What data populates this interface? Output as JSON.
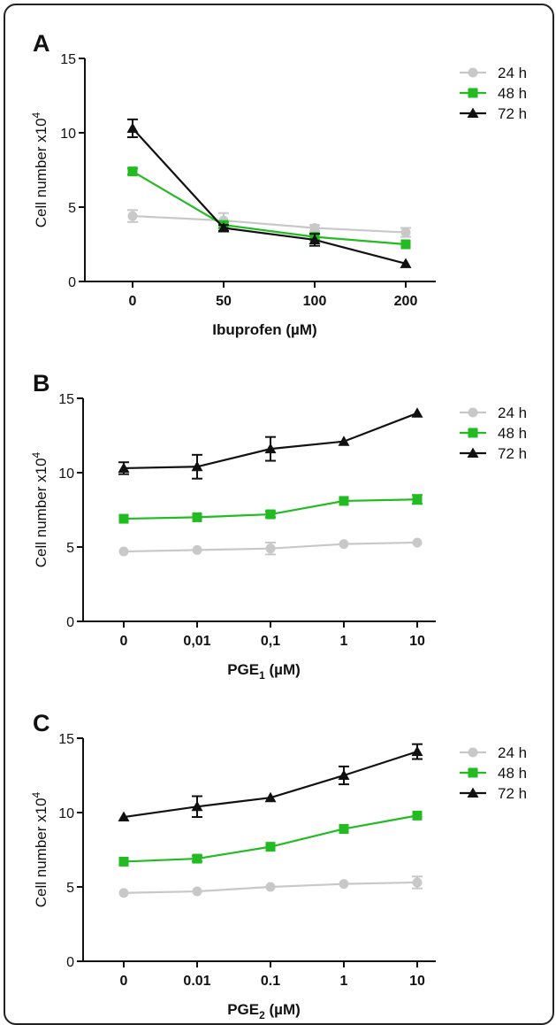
{
  "chart_data": [
    {
      "panel": "A",
      "type": "line",
      "categories": [
        "0",
        "50",
        "100",
        "200"
      ],
      "xlabel": "Ibuprofen (µM)",
      "xlabel_sub": "",
      "xlabel_tail": "",
      "ylabel": "Cell number x10",
      "ylabel_sup": "4",
      "ylim": [
        0,
        15
      ],
      "yticks": [
        0,
        5,
        10,
        15
      ],
      "series": [
        {
          "name": "24 h",
          "color": "#c8c8c8",
          "marker": "circle",
          "values": [
            4.4,
            4.1,
            3.6,
            3.3
          ],
          "errors": [
            0.4,
            0.5,
            0.2,
            0.3
          ]
        },
        {
          "name": "48 h",
          "color": "#22bb22",
          "marker": "square",
          "values": [
            7.4,
            3.8,
            3.0,
            2.5
          ],
          "errors": [
            0.2,
            0.2,
            0.2,
            0.1
          ]
        },
        {
          "name": "72 h",
          "color": "#111111",
          "marker": "triangle",
          "values": [
            10.3,
            3.6,
            2.8,
            1.2
          ],
          "errors": [
            0.6,
            0.2,
            0.4,
            0.1
          ]
        }
      ]
    },
    {
      "panel": "B",
      "type": "line",
      "categories": [
        "0",
        "0,01",
        "0,1",
        "1",
        "10"
      ],
      "xlabel": "PGE",
      "xlabel_sub": "1",
      "xlabel_tail": " (µM)",
      "ylabel": "Cell number x10",
      "ylabel_sup": "4",
      "ylim": [
        0,
        15
      ],
      "yticks": [
        0,
        5,
        10,
        15
      ],
      "series": [
        {
          "name": "24 h",
          "color": "#c8c8c8",
          "marker": "circle",
          "values": [
            4.7,
            4.8,
            4.9,
            5.2,
            5.3
          ],
          "errors": [
            0.1,
            0.1,
            0.4,
            0.1,
            0.1
          ]
        },
        {
          "name": "48 h",
          "color": "#22bb22",
          "marker": "square",
          "values": [
            6.9,
            7.0,
            7.2,
            8.1,
            8.2
          ],
          "errors": [
            0.1,
            0.1,
            0.2,
            0.1,
            0.3
          ]
        },
        {
          "name": "72 h",
          "color": "#111111",
          "marker": "triangle",
          "values": [
            10.3,
            10.4,
            11.6,
            12.1,
            14.0
          ],
          "errors": [
            0.4,
            0.8,
            0.8,
            0.1,
            0.1
          ]
        }
      ]
    },
    {
      "panel": "C",
      "type": "line",
      "categories": [
        "0",
        "0.01",
        "0.1",
        "1",
        "10"
      ],
      "xlabel": "PGE",
      "xlabel_sub": "2",
      "xlabel_tail": " (µM)",
      "ylabel": "Cell number x10",
      "ylabel_sup": "4",
      "ylim": [
        0,
        15
      ],
      "yticks": [
        0,
        5,
        10,
        15
      ],
      "series": [
        {
          "name": "24 h",
          "color": "#c8c8c8",
          "marker": "circle",
          "values": [
            4.6,
            4.7,
            5.0,
            5.2,
            5.3
          ],
          "errors": [
            0.1,
            0.1,
            0.1,
            0.1,
            0.4
          ]
        },
        {
          "name": "48 h",
          "color": "#22bb22",
          "marker": "square",
          "values": [
            6.7,
            6.9,
            7.7,
            8.9,
            9.8
          ],
          "errors": [
            0.1,
            0.2,
            0.1,
            0.1,
            0.1
          ]
        },
        {
          "name": "72 h",
          "color": "#111111",
          "marker": "triangle",
          "values": [
            9.7,
            10.4,
            11.0,
            12.5,
            14.1
          ],
          "errors": [
            0.1,
            0.7,
            0.1,
            0.6,
            0.5
          ]
        }
      ]
    }
  ]
}
